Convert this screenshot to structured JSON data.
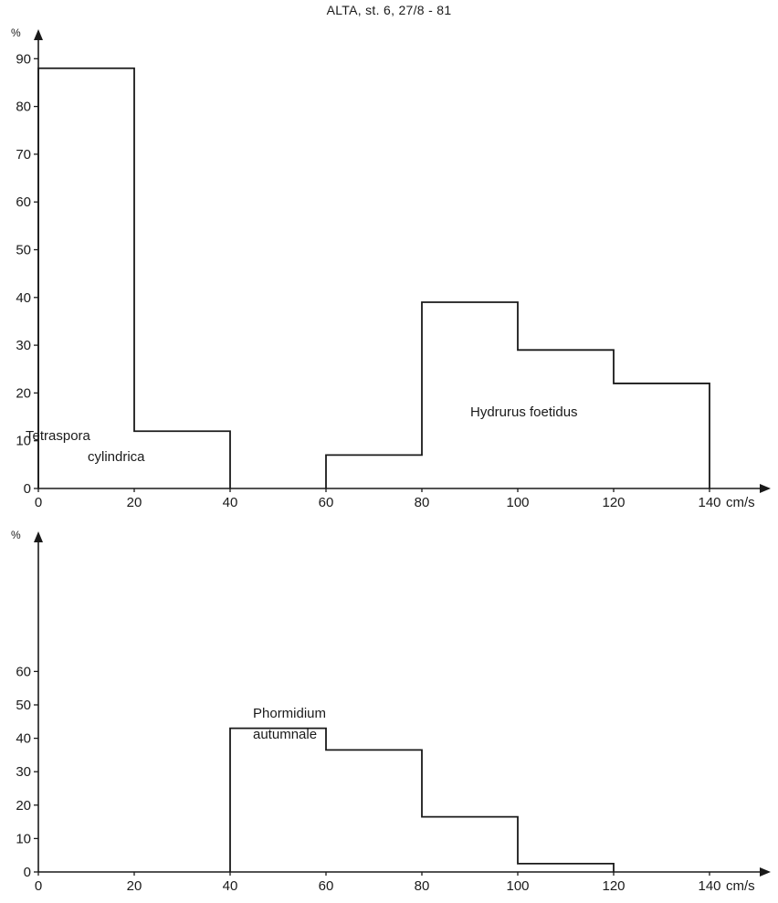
{
  "title": "ALTA, st. 6, 27/8 - 81",
  "chart_data": [
    {
      "type": "bar",
      "ylabel": "%",
      "xlabel": "cm/s",
      "x_ticks": [
        0,
        20,
        40,
        60,
        80,
        100,
        120,
        140
      ],
      "y_ticks": [
        0,
        10,
        20,
        30,
        40,
        50,
        60,
        70,
        80,
        90
      ],
      "xlim": [
        0,
        150
      ],
      "ylim": [
        0,
        92
      ],
      "series": [
        {
          "name": "Tetraspora cylindrica",
          "label_lines": [
            "Tetraspora",
            "cylindrica"
          ],
          "bins": [
            {
              "from": 0,
              "to": 20,
              "value": 88
            },
            {
              "from": 20,
              "to": 40,
              "value": 12
            }
          ]
        },
        {
          "name": "Hydrurus foetidus",
          "label_lines": [
            "Hydrurus foetidus"
          ],
          "bins": [
            {
              "from": 60,
              "to": 80,
              "value": 7
            },
            {
              "from": 80,
              "to": 100,
              "value": 39
            },
            {
              "from": 100,
              "to": 120,
              "value": 29
            },
            {
              "from": 120,
              "to": 140,
              "value": 22
            }
          ]
        }
      ]
    },
    {
      "type": "bar",
      "ylabel": "%",
      "xlabel": "cm/s",
      "x_ticks": [
        0,
        20,
        40,
        60,
        80,
        100,
        120,
        140
      ],
      "y_ticks": [
        0,
        10,
        20,
        30,
        40,
        50,
        60
      ],
      "xlim": [
        0,
        150
      ],
      "ylim": [
        0,
        62
      ],
      "series": [
        {
          "name": "Phormidium autumnale",
          "label_lines": [
            "Phormidium",
            "autumnale"
          ],
          "bins": [
            {
              "from": 40,
              "to": 60,
              "value": 43
            },
            {
              "from": 60,
              "to": 80,
              "value": 36.5
            },
            {
              "from": 80,
              "to": 100,
              "value": 16.5
            },
            {
              "from": 100,
              "to": 120,
              "value": 2.5
            }
          ]
        }
      ]
    }
  ]
}
